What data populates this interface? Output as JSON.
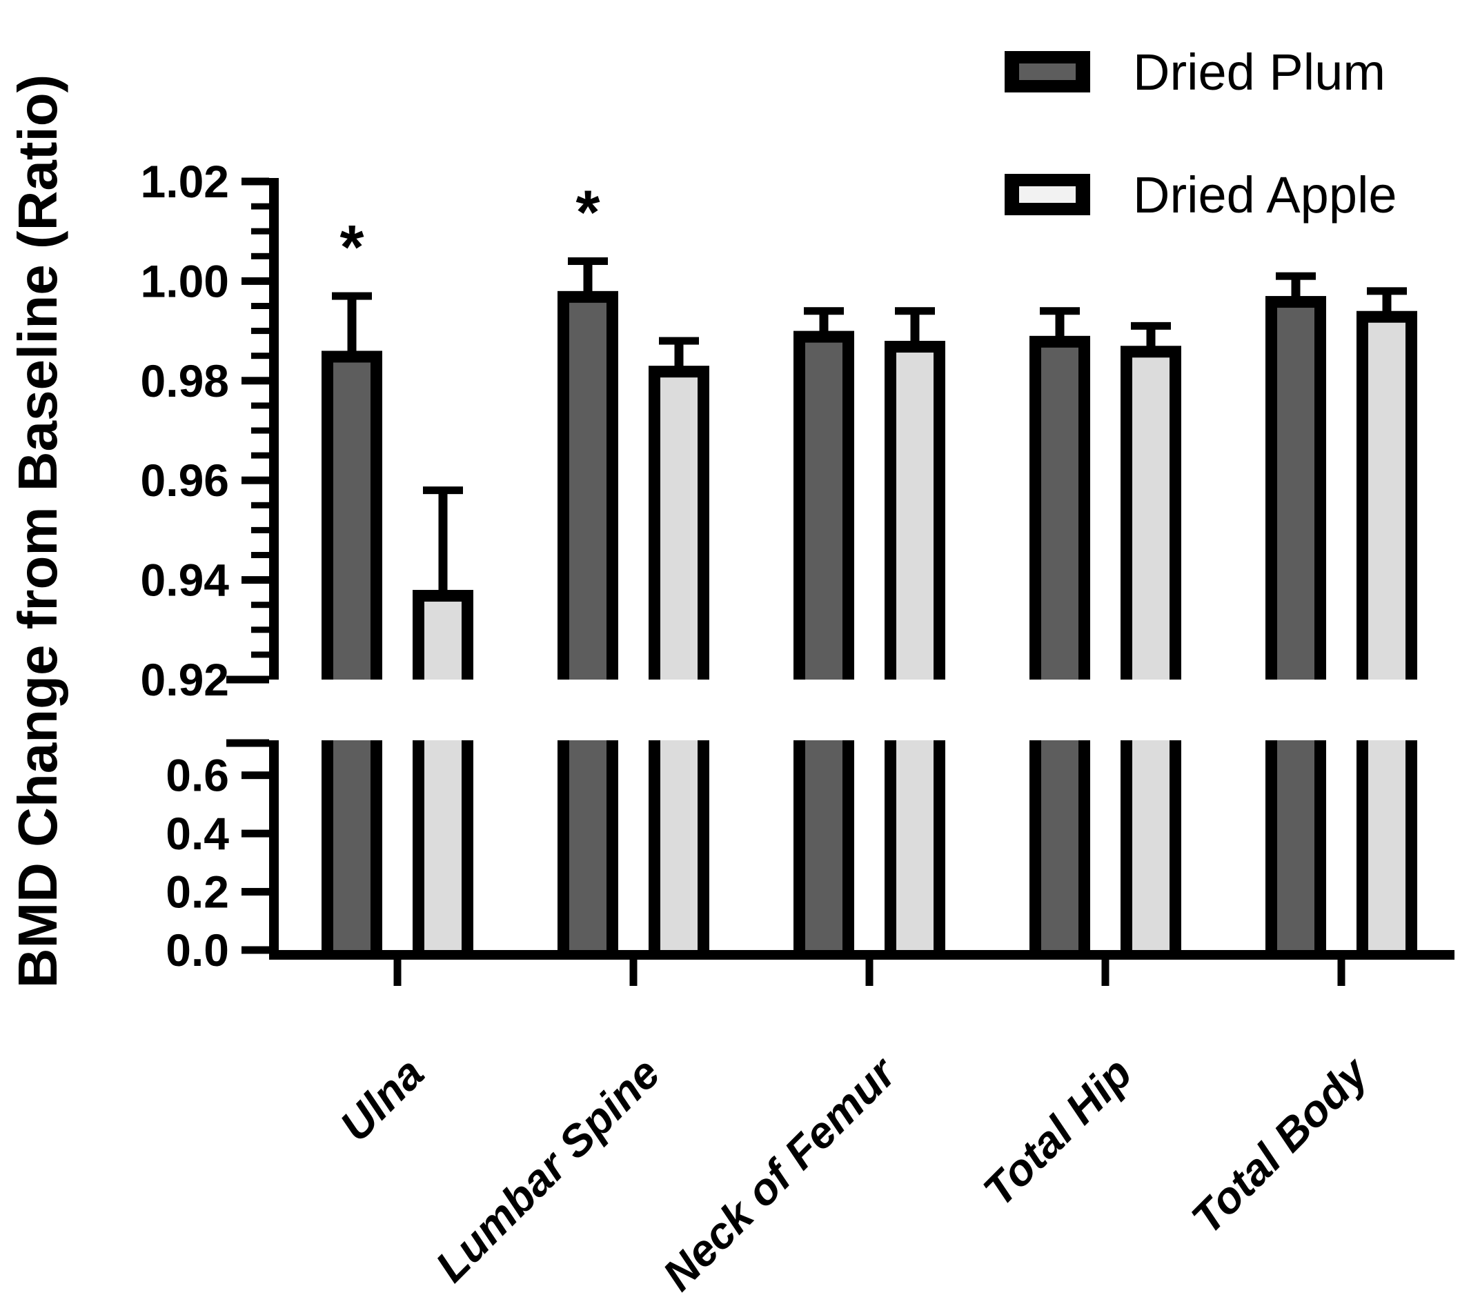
{
  "chart_data": {
    "type": "bar",
    "title": "",
    "ylabel": "BMD Change from Baseline (Ratio)",
    "xlabel": "",
    "categories": [
      "Ulna",
      "Lumbar Spine",
      "Neck of Femur",
      "Total Hip",
      "Total Body"
    ],
    "series": [
      {
        "name": "Dried Plum",
        "fill": "#5d5d5d",
        "values": [
          0.986,
          0.998,
          0.99,
          0.989,
          0.997
        ],
        "error_plus": [
          0.011,
          0.006,
          0.004,
          0.005,
          0.004
        ],
        "significant": [
          true,
          true,
          false,
          false,
          false
        ]
      },
      {
        "name": "Dried Apple",
        "fill": "#dcdcdc",
        "values": [
          0.938,
          0.983,
          0.988,
          0.987,
          0.994
        ],
        "error_plus": [
          0.02,
          0.005,
          0.006,
          0.004,
          0.004
        ],
        "significant": [
          false,
          false,
          false,
          false,
          false
        ]
      }
    ],
    "error_bars": "plus-only",
    "significance_marker": "*",
    "bar_outline_color": "#000000",
    "axis_break": {
      "between": [
        0.72,
        0.92
      ]
    },
    "y_axis": {
      "top_segment": {
        "min": 0.92,
        "max": 1.02,
        "tick_labels": [
          "1.02",
          "1.00",
          "0.98",
          "0.96",
          "0.94",
          "0.92"
        ],
        "minor_tick_step": 0.005
      },
      "bottom_segment": {
        "min": 0.0,
        "max": 0.72,
        "tick_labels": [
          "0.6",
          "0.4",
          "0.2",
          "0.0"
        ]
      }
    },
    "legend_position": "top-right",
    "grid": false
  }
}
